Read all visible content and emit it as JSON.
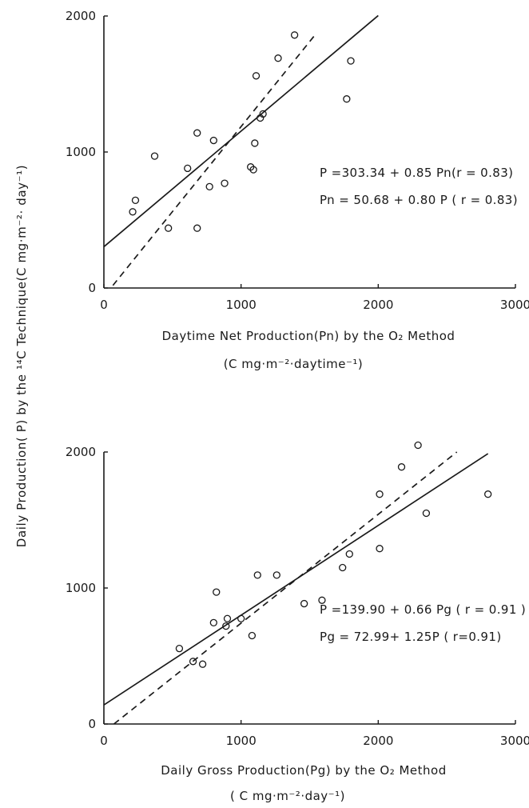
{
  "chart_data": [
    {
      "type": "scatter",
      "xlabel": "Daytime  Net Production(Pn) by the O₂ Method",
      "xlabel_units": "(C mg·m⁻²·daytime⁻¹)",
      "xlim": [
        0,
        3000
      ],
      "ylim": [
        0,
        2000
      ],
      "x_ticks": [
        "0",
        "1000",
        "2000",
        "3000"
      ],
      "y_ticks": [
        "0",
        "1000",
        "2000"
      ],
      "grid": false,
      "equations": [
        "P   =303.34 + 0.85 Pn(r = 0.83)",
        "Pn =  50.68 + 0.80 P  ( r = 0.83)"
      ],
      "lines": [
        {
          "style": "solid",
          "intercept": 303.34,
          "slope": 0.85,
          "x_range": [
            0,
            2000
          ]
        },
        {
          "style": "dashed",
          "x_range": [
            66,
            1550
          ],
          "inverse_of": {
            "intercept": 50.68,
            "slope": 0.8
          }
        }
      ],
      "points": [
        {
          "x": 210,
          "y": 560
        },
        {
          "x": 230,
          "y": 645
        },
        {
          "x": 370,
          "y": 970
        },
        {
          "x": 470,
          "y": 440
        },
        {
          "x": 610,
          "y": 880
        },
        {
          "x": 680,
          "y": 1140
        },
        {
          "x": 680,
          "y": 440
        },
        {
          "x": 770,
          "y": 745
        },
        {
          "x": 800,
          "y": 1085
        },
        {
          "x": 880,
          "y": 770
        },
        {
          "x": 1070,
          "y": 890
        },
        {
          "x": 1090,
          "y": 870
        },
        {
          "x": 1100,
          "y": 1065
        },
        {
          "x": 1110,
          "y": 1560
        },
        {
          "x": 1140,
          "y": 1250
        },
        {
          "x": 1160,
          "y": 1280
        },
        {
          "x": 1270,
          "y": 1690
        },
        {
          "x": 1390,
          "y": 1860
        },
        {
          "x": 1770,
          "y": 1390
        },
        {
          "x": 1800,
          "y": 1670
        }
      ]
    },
    {
      "type": "scatter",
      "xlabel": "Daily  Gross  Production(Pg) by the O₂ Method",
      "xlabel_units": "( C mg·m⁻²·day⁻¹)",
      "xlim": [
        0,
        3000
      ],
      "ylim": [
        0,
        2000
      ],
      "x_ticks": [
        "0",
        "1000",
        "2000",
        "3000"
      ],
      "y_ticks": [
        "0",
        "1000",
        "2000"
      ],
      "grid": false,
      "equations": [
        "P   =139.90 + 0.66 Pg ( r = 0.91 )",
        "Pg = 72.99+ 1.25P    ( r=0.91)"
      ],
      "lines": [
        {
          "style": "solid",
          "intercept": 139.9,
          "slope": 0.66,
          "x_range": [
            0,
            2800
          ]
        },
        {
          "style": "dashed",
          "x_range": [
            73,
            2573
          ],
          "inverse_of": {
            "intercept": 72.99,
            "slope": 1.25
          }
        }
      ],
      "points": [
        {
          "x": 550,
          "y": 555
        },
        {
          "x": 650,
          "y": 460
        },
        {
          "x": 720,
          "y": 440
        },
        {
          "x": 800,
          "y": 745
        },
        {
          "x": 820,
          "y": 970
        },
        {
          "x": 890,
          "y": 720
        },
        {
          "x": 900,
          "y": 775
        },
        {
          "x": 1000,
          "y": 775
        },
        {
          "x": 1080,
          "y": 650
        },
        {
          "x": 1120,
          "y": 1095
        },
        {
          "x": 1260,
          "y": 1095
        },
        {
          "x": 1460,
          "y": 885
        },
        {
          "x": 1590,
          "y": 910
        },
        {
          "x": 1740,
          "y": 1150
        },
        {
          "x": 1790,
          "y": 1250
        },
        {
          "x": 2010,
          "y": 1690
        },
        {
          "x": 2010,
          "y": 1290
        },
        {
          "x": 2170,
          "y": 1890
        },
        {
          "x": 2290,
          "y": 2050
        },
        {
          "x": 2350,
          "y": 1550
        },
        {
          "x": 2800,
          "y": 1690
        }
      ]
    }
  ],
  "shared_ylabel": "Daily  Production( P)  by the ¹⁴C Technique(C mg·m⁻²· day⁻¹)"
}
